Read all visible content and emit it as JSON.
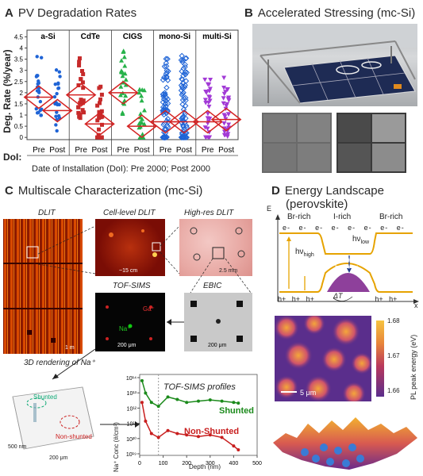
{
  "panelA": {
    "letter": "A",
    "title": "PV Degradation Rates",
    "ylabel": "Deg. Rate (%/year)",
    "dol_label": "DoI:",
    "caption": "Date of Installation (DoI): Pre 2000; Post 2000",
    "groups": [
      "a-Si",
      "CdTe",
      "CIGS",
      "mono-Si",
      "multi-Si"
    ],
    "xticks": [
      "Pre",
      "Post",
      "Pre",
      "Post",
      "Pre",
      "Post",
      "Pre",
      "Post",
      "Pre",
      "Post"
    ],
    "yticks": [
      "0",
      "0.5",
      "1",
      "1.5",
      "2",
      "2.5",
      "3",
      "3.5",
      "4",
      "4.5"
    ]
  },
  "panelB": {
    "letter": "B",
    "title": "Accelerated Stressing (mc-Si)"
  },
  "panelC": {
    "letter": "C",
    "title": "Multiscale Characterization (mc-Si)",
    "dlit": "DLIT",
    "dlit_scale": "1 m",
    "cell_dlit": "Cell-level DLIT",
    "cell_scale": "~15 cm",
    "highres_dlit": "High-res DLIT",
    "highres_scale": "2.5 mm",
    "tofsims": "TOF-SIMS",
    "tofsims_scale": "200 μm",
    "ga": "Ga⁺",
    "na": "Na⁺",
    "ebic": "EBIC",
    "ebic_scale": "200 μm",
    "render_title": "3D rendering of Na⁺",
    "shunted_lbl": "Shunted",
    "nonshunted_lbl": "Non-shunted",
    "render_scale1": "500 nm",
    "render_scale2": "200 μm",
    "profiles_title": "TOF-SIMS profiles",
    "profiles_ylabel": "Na⁺ Conc (#/cm³)",
    "profiles_xlabel": "Depth (nm)",
    "series_shunted": "Shunted",
    "series_nonshunted": "Non-Shunted",
    "profile_xticks": [
      "0",
      "100",
      "200",
      "300",
      "400",
      "500"
    ],
    "profile_yticks": [
      "10¹⁴",
      "10¹³",
      "10¹²",
      "10¹¹",
      "10²⁰",
      "10¹⁹"
    ]
  },
  "panelD": {
    "letter": "D",
    "title_line1": "Energy Landscape",
    "title_line2": "(perovskite)",
    "e_axis": "E",
    "x_axis": "x",
    "br_rich_left": "Br-rich",
    "i_rich": "I-rich",
    "br_rich_right": "Br-rich",
    "electron": "e-",
    "hole": "h+",
    "hv_high": "hν",
    "hv_high_sub": "high",
    "hv_low": "hν",
    "hv_low_sub": "low",
    "delta_t": "ΔT",
    "pl_scale": "5 μm",
    "cbar_label": "PL peak energy (eV)",
    "cbar_ticks": [
      "1.68",
      "1.67",
      "1.66"
    ]
  },
  "chart_data": [
    {
      "type": "scatter",
      "title": "PV Degradation Rates",
      "ylabel": "Deg. Rate (%/year)",
      "xlabel": "Date of Installation (DoI): Pre 2000; Post 2000",
      "ylim": [
        -0.1,
        4.8
      ],
      "categories": [
        "a-Si Pre",
        "a-Si Post",
        "CdTe Pre",
        "CdTe Post",
        "CIGS Pre",
        "CIGS Post",
        "mono-Si Pre",
        "mono-Si Post",
        "multi-Si Pre",
        "multi-Si Post"
      ],
      "medians": [
        1.8,
        1.2,
        1.9,
        0.6,
        2.0,
        0.5,
        0.7,
        0.7,
        0.7,
        0.8
      ]
    },
    {
      "type": "line",
      "title": "TOF-SIMS profiles",
      "xlabel": "Depth (nm)",
      "ylabel": "Na⁺ Conc (#/cm³)",
      "xlim": [
        0,
        500
      ],
      "log_y": true,
      "series": [
        {
          "name": "Shunted",
          "x": [
            10,
            25,
            50,
            80,
            120,
            160,
            200,
            250,
            300,
            350,
            400,
            420
          ],
          "y": [
            1e+21,
            4e+20,
            2e+20,
            1.5e+20,
            3e+20,
            2.5e+20,
            2e+20,
            2.2e+20,
            2.4e+20,
            2.2e+20,
            2e+20,
            1.9e+20
          ]
        },
        {
          "name": "Non-Shunted",
          "x": [
            10,
            25,
            50,
            80,
            120,
            160,
            200,
            250,
            300,
            350,
            400,
            420
          ],
          "y": [
            2e+20,
            5e+19,
            2e+19,
            1.5e+19,
            2.5e+19,
            2e+19,
            1.8e+19,
            1.6e+19,
            1.8e+19,
            1.5e+19,
            8e+18,
            6e+18
          ]
        }
      ]
    }
  ]
}
